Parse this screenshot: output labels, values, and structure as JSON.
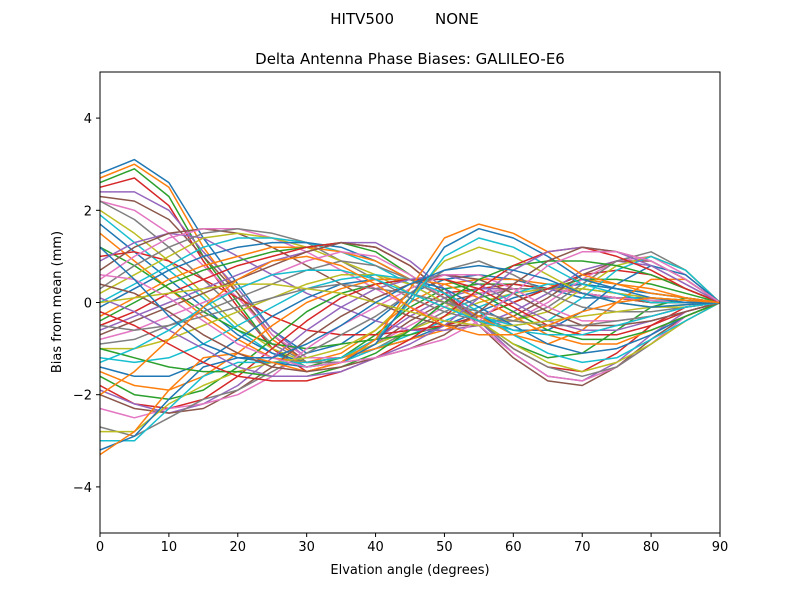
{
  "figure": {
    "suptitle_left": "HITV500",
    "suptitle_right": "NONE"
  },
  "chart_data": {
    "type": "line",
    "title": "Delta Antenna Phase Biases: GALILEO-E6",
    "xlabel": "Elvation angle (degrees)",
    "ylabel": "Bias from mean (mm)",
    "xlim": [
      0,
      90
    ],
    "ylim": [
      -5,
      5
    ],
    "xticks": [
      0,
      10,
      20,
      30,
      40,
      50,
      60,
      70,
      80,
      90
    ],
    "xtick_labels": [
      "0",
      "10",
      "20",
      "30",
      "40",
      "50",
      "60",
      "70",
      "80",
      "90"
    ],
    "yticks": [
      -4,
      -2,
      0,
      2,
      4
    ],
    "ytick_labels": [
      "−4",
      "−2",
      "0",
      "2",
      "4"
    ],
    "grid": false,
    "legend": "none",
    "colors": [
      "#1f77b4",
      "#ff7f0e",
      "#2ca02c",
      "#d62728",
      "#9467bd",
      "#8c564b",
      "#e377c2",
      "#7f7f7f",
      "#bcbd22",
      "#17becf"
    ],
    "x": [
      0,
      5,
      10,
      15,
      20,
      25,
      30,
      35,
      40,
      45,
      50,
      55,
      60,
      65,
      70,
      75,
      80,
      85,
      90
    ],
    "series": [
      {
        "values": [
          2.8,
          3.1,
          2.6,
          1.4,
          0.4,
          -0.6,
          -1.1,
          -0.9,
          -0.4,
          0.2,
          0.5,
          0.6,
          0.5,
          0.3,
          0.1,
          0.1,
          0.1,
          0.05,
          0
        ]
      },
      {
        "values": [
          2.7,
          3.0,
          2.5,
          1.2,
          0.2,
          -0.8,
          -1.3,
          -1.1,
          -0.6,
          0.0,
          0.4,
          0.5,
          0.5,
          0.4,
          0.2,
          0.1,
          0.0,
          0.0,
          0
        ]
      },
      {
        "values": [
          2.6,
          2.9,
          2.3,
          1.0,
          0.0,
          -1.0,
          -1.4,
          -1.2,
          -0.7,
          -0.1,
          0.3,
          0.4,
          0.4,
          0.3,
          0.2,
          0.1,
          0.05,
          0.0,
          0
        ]
      },
      {
        "values": [
          2.5,
          2.7,
          2.1,
          0.9,
          -0.1,
          -1.0,
          -1.5,
          -1.3,
          -0.8,
          -0.2,
          0.2,
          0.3,
          0.4,
          0.3,
          0.2,
          0.1,
          0.0,
          0.0,
          0
        ]
      },
      {
        "values": [
          2.4,
          2.4,
          2.0,
          1.1,
          0.3,
          -0.6,
          -1.2,
          -1.2,
          -0.8,
          -0.3,
          0.1,
          0.3,
          0.3,
          0.3,
          0.2,
          0.1,
          0.0,
          0.0,
          0
        ]
      },
      {
        "values": [
          2.3,
          2.2,
          1.8,
          1.0,
          0.2,
          -0.7,
          -1.3,
          -1.3,
          -0.9,
          -0.4,
          0.0,
          0.2,
          0.3,
          0.3,
          0.2,
          0.1,
          0.0,
          0.0,
          0
        ]
      },
      {
        "values": [
          2.2,
          2.0,
          1.5,
          0.8,
          0.1,
          -0.7,
          -1.2,
          -1.2,
          -0.9,
          -0.5,
          -0.1,
          0.2,
          0.3,
          0.3,
          0.2,
          0.1,
          0.05,
          0.0,
          0
        ]
      },
      {
        "values": [
          2.2,
          1.8,
          1.2,
          0.5,
          -0.2,
          -0.9,
          -1.3,
          -1.3,
          -1.0,
          -0.6,
          -0.2,
          0.1,
          0.3,
          0.3,
          0.3,
          0.2,
          0.1,
          0.05,
          0
        ]
      },
      {
        "values": [
          2.0,
          1.5,
          0.9,
          0.2,
          -0.5,
          -1.0,
          -1.3,
          -1.2,
          -0.9,
          -0.6,
          -0.3,
          0.0,
          0.2,
          0.3,
          0.3,
          0.2,
          0.1,
          0.05,
          0
        ]
      },
      {
        "values": [
          1.9,
          1.3,
          0.7,
          0.1,
          -0.6,
          -1.1,
          -1.4,
          -1.3,
          -1.0,
          -0.7,
          -0.4,
          -0.1,
          0.2,
          0.4,
          0.4,
          0.3,
          0.2,
          0.1,
          0
        ]
      },
      {
        "values": [
          1.7,
          1.1,
          0.5,
          -0.1,
          -0.7,
          -1.1,
          -1.3,
          -1.2,
          -1.0,
          -0.8,
          -0.5,
          -0.2,
          0.1,
          0.3,
          0.4,
          0.3,
          0.2,
          0.1,
          0
        ]
      },
      {
        "values": [
          1.5,
          0.9,
          0.3,
          -0.3,
          -0.8,
          -1.2,
          -1.3,
          -1.2,
          -1.0,
          -0.8,
          -0.6,
          -0.3,
          0.0,
          0.3,
          0.5,
          0.4,
          0.3,
          0.1,
          0
        ]
      },
      {
        "values": [
          1.2,
          0.8,
          0.3,
          -0.2,
          -0.6,
          -0.9,
          -1.0,
          -0.9,
          -0.8,
          -0.7,
          -0.5,
          -0.3,
          0.0,
          0.3,
          0.5,
          0.5,
          0.4,
          0.2,
          0
        ]
      },
      {
        "values": [
          1.0,
          1.1,
          0.9,
          0.5,
          0.1,
          -0.3,
          -0.6,
          -0.7,
          -0.7,
          -0.6,
          -0.5,
          -0.3,
          0.0,
          0.3,
          0.6,
          0.7,
          0.6,
          0.3,
          0
        ]
      },
      {
        "values": [
          0.9,
          1.3,
          1.5,
          1.4,
          1.0,
          0.6,
          0.2,
          -0.1,
          -0.4,
          -0.6,
          -0.6,
          -0.5,
          -0.2,
          0.2,
          0.7,
          0.9,
          0.8,
          0.4,
          0
        ]
      },
      {
        "values": [
          0.7,
          1.2,
          1.5,
          1.6,
          1.5,
          1.2,
          0.8,
          0.4,
          0.0,
          -0.3,
          -0.5,
          -0.5,
          -0.3,
          0.1,
          0.6,
          0.9,
          0.9,
          0.5,
          0
        ]
      },
      {
        "values": [
          0.5,
          1.0,
          1.4,
          1.6,
          1.6,
          1.4,
          1.1,
          0.7,
          0.3,
          -0.1,
          -0.4,
          -0.5,
          -0.4,
          0.0,
          0.5,
          0.9,
          1.0,
          0.6,
          0
        ]
      },
      {
        "values": [
          0.3,
          0.8,
          1.2,
          1.5,
          1.6,
          1.5,
          1.3,
          0.9,
          0.5,
          0.1,
          -0.2,
          -0.4,
          -0.4,
          -0.1,
          0.4,
          0.9,
          1.1,
          0.7,
          0
        ]
      },
      {
        "values": [
          0.2,
          0.6,
          1.0,
          1.4,
          1.5,
          1.4,
          1.2,
          0.9,
          0.6,
          0.2,
          -0.1,
          -0.3,
          -0.4,
          -0.2,
          0.3,
          0.8,
          1.0,
          0.7,
          0
        ]
      },
      {
        "values": [
          0.0,
          0.4,
          0.8,
          1.2,
          1.4,
          1.4,
          1.3,
          1.1,
          0.8,
          0.4,
          0.0,
          -0.3,
          -0.5,
          -0.4,
          0.1,
          0.7,
          1.0,
          0.7,
          0
        ]
      },
      {
        "values": [
          -0.1,
          0.3,
          0.7,
          1.0,
          1.2,
          1.3,
          1.3,
          1.2,
          0.9,
          0.5,
          0.1,
          -0.3,
          -0.6,
          -0.6,
          -0.2,
          0.4,
          0.8,
          0.6,
          0
        ]
      },
      {
        "values": [
          -0.3,
          0.1,
          0.5,
          0.8,
          1.0,
          1.2,
          1.2,
          1.1,
          0.9,
          0.5,
          0.1,
          -0.3,
          -0.7,
          -0.9,
          -0.6,
          0.0,
          0.5,
          0.5,
          0
        ]
      },
      {
        "values": [
          -0.4,
          0.0,
          0.4,
          0.7,
          0.9,
          1.1,
          1.2,
          1.3,
          1.1,
          0.6,
          0.1,
          -0.4,
          -0.9,
          -1.2,
          -1.1,
          -0.6,
          -0.1,
          0.1,
          0
        ]
      },
      {
        "values": [
          -0.5,
          -0.2,
          0.2,
          0.5,
          0.8,
          1.0,
          1.2,
          1.3,
          1.2,
          0.8,
          0.2,
          -0.4,
          -1.0,
          -1.4,
          -1.5,
          -1.1,
          -0.5,
          -0.1,
          0
        ]
      },
      {
        "values": [
          -0.6,
          -0.3,
          0.0,
          0.3,
          0.6,
          0.9,
          1.1,
          1.3,
          1.3,
          0.9,
          0.3,
          -0.4,
          -1.1,
          -1.6,
          -1.7,
          -1.3,
          -0.7,
          -0.2,
          0
        ]
      },
      {
        "values": [
          -0.7,
          -0.4,
          -0.1,
          0.2,
          0.5,
          0.8,
          1.1,
          1.3,
          1.2,
          0.8,
          0.2,
          -0.5,
          -1.2,
          -1.7,
          -1.8,
          -1.4,
          -0.8,
          -0.3,
          0
        ]
      },
      {
        "values": [
          -0.8,
          -0.6,
          -0.3,
          0.0,
          0.3,
          0.6,
          0.9,
          1.1,
          1.0,
          0.6,
          0.1,
          -0.5,
          -1.1,
          -1.6,
          -1.7,
          -1.4,
          -0.9,
          -0.3,
          0
        ]
      },
      {
        "values": [
          -0.9,
          -0.8,
          -0.5,
          -0.2,
          0.1,
          0.4,
          0.7,
          0.9,
          0.8,
          0.5,
          0.1,
          -0.4,
          -1.0,
          -1.4,
          -1.6,
          -1.4,
          -0.9,
          -0.4,
          0
        ]
      },
      {
        "values": [
          -1.0,
          -1.0,
          -0.8,
          -0.5,
          -0.2,
          0.1,
          0.4,
          0.6,
          0.6,
          0.4,
          0.0,
          -0.4,
          -0.9,
          -1.3,
          -1.5,
          -1.3,
          -0.9,
          -0.4,
          0
        ]
      },
      {
        "values": [
          -1.2,
          -1.3,
          -1.2,
          -0.9,
          -0.5,
          -0.1,
          0.3,
          0.5,
          0.6,
          0.5,
          0.2,
          -0.2,
          -0.7,
          -1.1,
          -1.3,
          -1.2,
          -0.8,
          -0.4,
          0
        ]
      },
      {
        "values": [
          -1.4,
          -1.6,
          -1.6,
          -1.3,
          -0.8,
          -0.3,
          0.1,
          0.4,
          0.5,
          0.5,
          0.3,
          -0.1,
          -0.5,
          -0.9,
          -1.1,
          -1.0,
          -0.7,
          -0.3,
          0
        ]
      },
      {
        "values": [
          -1.5,
          -1.8,
          -1.9,
          -1.6,
          -1.1,
          -0.5,
          0.0,
          0.3,
          0.5,
          0.5,
          0.4,
          0.1,
          -0.3,
          -0.7,
          -0.9,
          -0.9,
          -0.6,
          -0.3,
          0
        ]
      },
      {
        "values": [
          -1.6,
          -2.0,
          -2.1,
          -1.9,
          -1.4,
          -0.8,
          -0.2,
          0.2,
          0.4,
          0.5,
          0.5,
          0.2,
          -0.2,
          -0.6,
          -0.8,
          -0.8,
          -0.6,
          -0.3,
          0
        ]
      },
      {
        "values": [
          -1.8,
          -2.2,
          -2.3,
          -2.1,
          -1.6,
          -1.0,
          -0.4,
          0.1,
          0.4,
          0.5,
          0.5,
          0.3,
          -0.1,
          -0.5,
          -0.7,
          -0.7,
          -0.5,
          -0.2,
          0
        ]
      },
      {
        "values": [
          -1.9,
          -2.2,
          -2.4,
          -2.2,
          -1.8,
          -1.2,
          -0.6,
          -0.1,
          0.3,
          0.5,
          0.6,
          0.4,
          0.0,
          -0.4,
          -0.6,
          -0.6,
          -0.4,
          -0.2,
          0
        ]
      },
      {
        "values": [
          -2.0,
          -2.3,
          -2.4,
          -2.3,
          -1.9,
          -1.4,
          -0.8,
          -0.3,
          0.1,
          0.4,
          0.6,
          0.5,
          0.2,
          -0.2,
          -0.5,
          -0.5,
          -0.4,
          -0.2,
          0
        ]
      },
      {
        "values": [
          -2.3,
          -2.5,
          -2.3,
          -2.2,
          -2.0,
          -1.6,
          -1.0,
          -0.5,
          -0.1,
          0.3,
          0.6,
          0.6,
          0.3,
          -0.1,
          -0.4,
          -0.4,
          -0.3,
          -0.1,
          0
        ]
      },
      {
        "values": [
          -2.7,
          -2.9,
          -2.5,
          -2.1,
          -1.9,
          -1.5,
          -1.1,
          -0.7,
          -0.3,
          0.2,
          0.7,
          0.9,
          0.6,
          0.2,
          -0.1,
          -0.2,
          -0.2,
          -0.1,
          0
        ]
      },
      {
        "values": [
          -2.8,
          -2.8,
          -2.2,
          -1.8,
          -1.5,
          -1.3,
          -1.2,
          -1.0,
          -0.6,
          0.1,
          0.9,
          1.2,
          1.0,
          0.6,
          0.2,
          0.0,
          -0.1,
          -0.1,
          0
        ]
      },
      {
        "values": [
          -3.0,
          -3.0,
          -2.3,
          -1.6,
          -1.3,
          -1.3,
          -1.3,
          -1.2,
          -0.8,
          0.0,
          1.0,
          1.4,
          1.2,
          0.8,
          0.4,
          0.2,
          0.0,
          0.0,
          0
        ]
      },
      {
        "values": [
          -3.2,
          -2.9,
          -2.1,
          -1.4,
          -1.2,
          -1.3,
          -1.4,
          -1.3,
          -0.9,
          0.1,
          1.2,
          1.6,
          1.4,
          1.0,
          0.5,
          0.3,
          0.1,
          0.0,
          0
        ]
      },
      {
        "values": [
          -3.3,
          -2.8,
          -1.9,
          -1.2,
          -1.1,
          -1.3,
          -1.5,
          -1.3,
          -0.8,
          0.3,
          1.4,
          1.7,
          1.5,
          1.1,
          0.6,
          0.4,
          0.2,
          0.1,
          0
        ]
      },
      {
        "values": [
          -1.0,
          -1.2,
          -1.4,
          -1.5,
          -1.5,
          -1.6,
          -1.6,
          -1.4,
          -1.1,
          -0.6,
          0.0,
          0.5,
          0.8,
          0.9,
          0.9,
          0.8,
          0.6,
          0.3,
          0
        ]
      },
      {
        "values": [
          -0.2,
          -0.5,
          -0.9,
          -1.3,
          -1.6,
          -1.7,
          -1.7,
          -1.5,
          -1.2,
          -0.8,
          -0.3,
          0.3,
          0.8,
          1.1,
          1.2,
          1.0,
          0.7,
          0.3,
          0
        ]
      },
      {
        "values": [
          0.1,
          -0.2,
          -0.6,
          -1.0,
          -1.4,
          -1.6,
          -1.6,
          -1.5,
          -1.2,
          -0.9,
          -0.5,
          0.1,
          0.7,
          1.1,
          1.2,
          1.1,
          0.8,
          0.4,
          0
        ]
      },
      {
        "values": [
          0.4,
          0.2,
          -0.2,
          -0.7,
          -1.1,
          -1.4,
          -1.5,
          -1.4,
          -1.2,
          -1.0,
          -0.7,
          -0.2,
          0.4,
          0.9,
          1.2,
          1.1,
          0.9,
          0.5,
          0
        ]
      },
      {
        "values": [
          0.6,
          0.5,
          0.1,
          -0.4,
          -0.9,
          -1.2,
          -1.4,
          -1.3,
          -1.2,
          -1.0,
          -0.8,
          -0.4,
          0.2,
          0.8,
          1.1,
          1.1,
          0.9,
          0.5,
          0
        ]
      },
      {
        "values": [
          -0.5,
          -0.6,
          -0.5,
          -0.3,
          -0.1,
          0.1,
          0.3,
          0.4,
          0.3,
          0.2,
          0.0,
          -0.2,
          -0.4,
          -0.5,
          -0.5,
          -0.4,
          -0.3,
          -0.1,
          0
        ]
      },
      {
        "values": [
          0.0,
          0.1,
          0.2,
          0.3,
          0.4,
          0.4,
          0.3,
          0.2,
          0.0,
          -0.2,
          -0.4,
          -0.5,
          -0.5,
          -0.4,
          -0.3,
          -0.2,
          -0.1,
          -0.05,
          0
        ]
      },
      {
        "values": [
          -1.3,
          -1.0,
          -0.6,
          -0.1,
          0.3,
          0.6,
          0.7,
          0.7,
          0.5,
          0.2,
          -0.1,
          -0.4,
          -0.6,
          -0.7,
          -0.7,
          -0.5,
          -0.3,
          -0.1,
          0
        ]
      },
      {
        "values": [
          1.2,
          0.5,
          -0.3,
          -0.9,
          -1.2,
          -1.2,
          -0.9,
          -0.5,
          0.0,
          0.4,
          0.7,
          0.8,
          0.7,
          0.5,
          0.2,
          0.0,
          -0.1,
          -0.05,
          0
        ]
      },
      {
        "values": [
          -2.0,
          -1.5,
          -0.8,
          -0.1,
          0.5,
          0.9,
          1.0,
          0.8,
          0.4,
          -0.1,
          -0.5,
          -0.7,
          -0.7,
          -0.5,
          -0.2,
          0.0,
          0.1,
          0.05,
          0
        ]
      }
    ]
  }
}
